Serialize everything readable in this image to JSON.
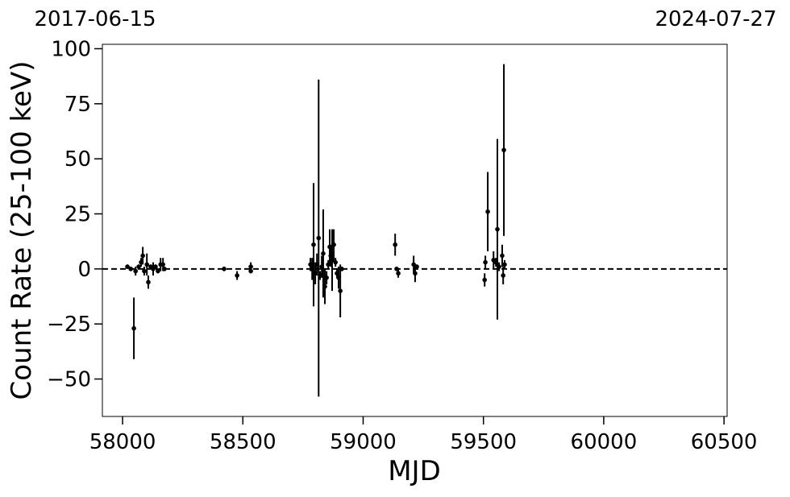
{
  "chart_data": {
    "type": "scatter",
    "top_left_label": "2017-06-15",
    "top_right_label": "2024-07-27",
    "xlabel": "MJD",
    "ylabel": "Count Rate (25-100 keV)",
    "color": "#000000",
    "x": [
      58020,
      58034,
      58047,
      58054,
      58067,
      58077,
      58084,
      58090,
      58101,
      58107,
      58117,
      58127,
      58137,
      58147,
      58158,
      58168,
      58174,
      58422,
      58476,
      58533,
      58533,
      58781,
      58788,
      58794,
      58801,
      58808,
      58815,
      58821,
      58828,
      58834,
      58841,
      58848,
      58855,
      58861,
      58865,
      58871,
      58878,
      58885,
      58891,
      58898,
      58905,
      58911,
      59133,
      59139,
      59146,
      59210,
      59216,
      59223,
      59505,
      59508,
      59518,
      59542,
      59552,
      59558,
      59565,
      59578,
      59582,
      59585,
      59588
    ],
    "values": [
      1,
      0,
      -27,
      -1,
      1,
      3,
      6,
      -1,
      2,
      -6,
      1,
      0,
      1,
      -1,
      2,
      2,
      0,
      0,
      -3,
      1,
      -1,
      2,
      0,
      11,
      -2,
      2,
      14,
      -3,
      1,
      7,
      -8,
      -4,
      2,
      10,
      6,
      4,
      11,
      3,
      -2,
      -4,
      -10,
      0,
      11,
      0,
      -2,
      2,
      -2,
      1,
      -5,
      3,
      26,
      4,
      3,
      18,
      1,
      6,
      -3,
      54,
      2
    ],
    "yerr": [
      1,
      1,
      14,
      2,
      1,
      2,
      4,
      2,
      5,
      3,
      1,
      3,
      1,
      1,
      3,
      3,
      1,
      1,
      2,
      2,
      1,
      3,
      5,
      28,
      5,
      5,
      72,
      2,
      5,
      20,
      8,
      3,
      2,
      8,
      5,
      14,
      7,
      2,
      2,
      5,
      12,
      1,
      5,
      1,
      2,
      4,
      4,
      1,
      3,
      3,
      18,
      4,
      2,
      41,
      2,
      5,
      4,
      39,
      2
    ],
    "reference_line": 0,
    "xlim": [
      57916,
      60513
    ],
    "ylim": [
      -67,
      102
    ],
    "xticks": [
      58000,
      58500,
      59000,
      59500,
      60000,
      60500
    ],
    "yticks": [
      {
        "value": -50,
        "label": "−50"
      },
      {
        "value": -25,
        "label": "−25"
      },
      0,
      25,
      50,
      75,
      100
    ]
  }
}
